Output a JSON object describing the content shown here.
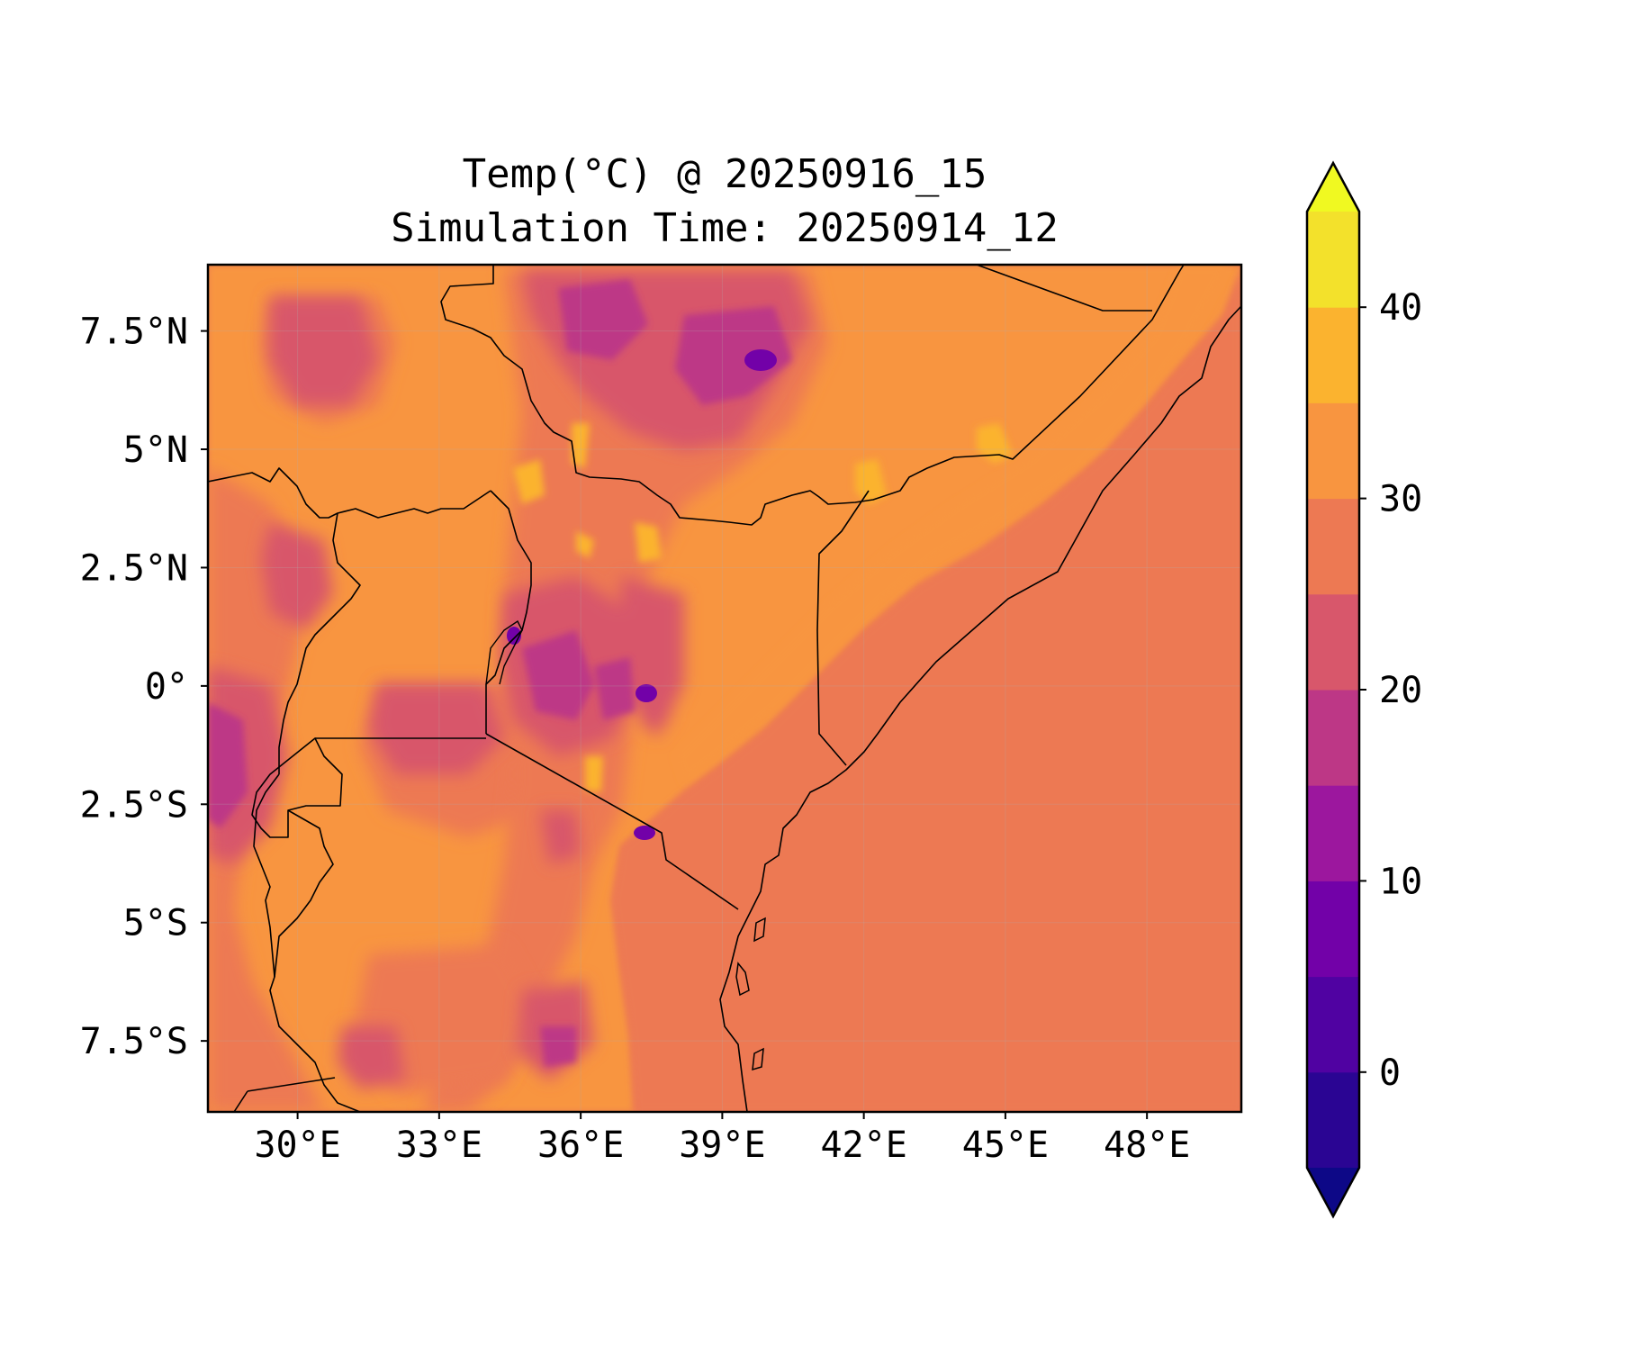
{
  "title": {
    "line1": "Temp(°C) @ 20250916_15",
    "line2": "Simulation Time: 20250914_12"
  },
  "map": {
    "lon_range": [
      28.1,
      50.0
    ],
    "lat_range": [
      -9.0,
      8.9
    ],
    "x_ticks": [
      {
        "lon": 30,
        "label": "30°E"
      },
      {
        "lon": 33,
        "label": "33°E"
      },
      {
        "lon": 36,
        "label": "36°E"
      },
      {
        "lon": 39,
        "label": "39°E"
      },
      {
        "lon": 42,
        "label": "42°E"
      },
      {
        "lon": 45,
        "label": "45°E"
      },
      {
        "lon": 48,
        "label": "48°E"
      }
    ],
    "y_ticks": [
      {
        "lat": 7.5,
        "label": "7.5°N"
      },
      {
        "lat": 5,
        "label": "5°N"
      },
      {
        "lat": 2.5,
        "label": "2.5°N"
      },
      {
        "lat": 0,
        "label": "0°"
      },
      {
        "lat": -2.5,
        "label": "2.5°S"
      },
      {
        "lat": -5,
        "label": "5°S"
      },
      {
        "lat": -7.5,
        "label": "7.5°S"
      }
    ],
    "ocean_temp_class": "25-30",
    "highland_cool_spots": [
      {
        "lon": 39.4,
        "lat": 7.3,
        "level": "5-10"
      },
      {
        "lon": 37.3,
        "lat": 0.0,
        "level": "5-10"
      },
      {
        "lon": 37.4,
        "lat": -3.1,
        "level": "5-10"
      },
      {
        "lon": 34.6,
        "lat": 1.1,
        "level": "5-10"
      }
    ],
    "hot_spots": [
      {
        "lon": 35.0,
        "lat": 4.3,
        "level": "35-40"
      },
      {
        "lon": 36.0,
        "lat": 5.2,
        "level": "35-40"
      },
      {
        "lon": 45.0,
        "lat": 5.5,
        "level": "35-40"
      },
      {
        "lon": 42.1,
        "lat": 4.4,
        "level": "35-40"
      }
    ]
  },
  "colorbar": {
    "levels": [
      -5,
      0,
      5,
      10,
      15,
      20,
      25,
      30,
      35,
      40,
      45
    ],
    "colors": [
      "#2a0593",
      "#5002a2",
      "#7201a8",
      "#9c179e",
      "#bd3786",
      "#d8576b",
      "#ed7953",
      "#f89540",
      "#fbb32f",
      "#f3e12b"
    ],
    "under_color": "#0d0887",
    "over_color": "#f0f921",
    "extend": "both",
    "tick_labels": [
      {
        "value": 0,
        "label": "0"
      },
      {
        "value": 10,
        "label": "10"
      },
      {
        "value": 20,
        "label": "20"
      },
      {
        "value": 30,
        "label": "30"
      },
      {
        "value": 40,
        "label": "40"
      }
    ]
  }
}
